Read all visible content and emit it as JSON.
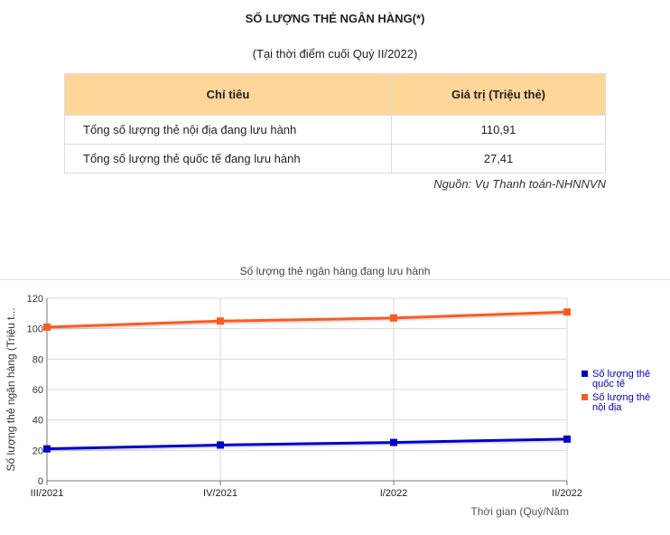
{
  "header": {
    "title": "SỐ LƯỢNG THẺ NGÂN HÀNG(*)",
    "subtitle": "(Tại thời điểm cuối Quý II/2022)"
  },
  "table": {
    "columns": [
      "Chỉ tiêu",
      "Giá trị (Triệu thẻ)"
    ],
    "rows": [
      {
        "label": "Tổng số lượng thẻ nội địa đang lưu hành",
        "value": "110,91"
      },
      {
        "label": "Tổng số lượng thẻ quốc tế đang lưu hành",
        "value": "27,41"
      }
    ]
  },
  "source": "Nguồn: Vụ Thanh toán-NHNNVN",
  "chart_data": {
    "type": "line",
    "title": "Số lượng thẻ ngân hàng đang lưu hành",
    "xlabel": "Thời gian (Quý/Năm",
    "ylabel": "Số lượng thẻ ngân hàng (Triệu t...",
    "categories": [
      "III/2021",
      "IV/2021",
      "I/2022",
      "II/2022"
    ],
    "ylim": [
      0,
      120
    ],
    "yticks": [
      0,
      20,
      40,
      60,
      80,
      100,
      120
    ],
    "grid": true,
    "legend_position": "right",
    "series": [
      {
        "name": "Số lượng thẻ quốc tế",
        "color": "#0000cc",
        "values": [
          21,
          23.5,
          25.2,
          27.41
        ]
      },
      {
        "name": "Số lượng thẻ nội địa",
        "color": "#ff5a1f",
        "values": [
          101,
          105,
          107,
          110.91
        ]
      }
    ]
  }
}
